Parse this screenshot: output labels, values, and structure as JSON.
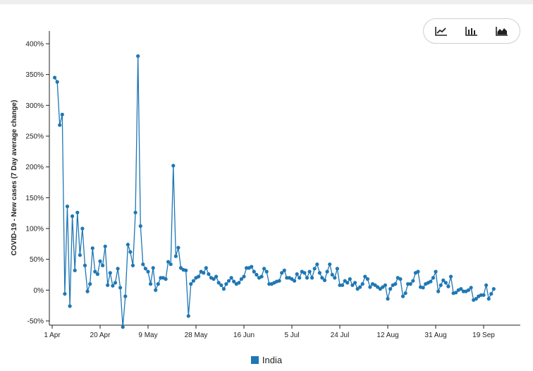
{
  "toolbar": {
    "buttons": [
      {
        "icon": "line-chart-icon"
      },
      {
        "icon": "bar-chart-icon"
      },
      {
        "icon": "area-chart-icon"
      }
    ]
  },
  "chart_data": {
    "type": "line",
    "ylabel": "COVID-19 - New cases (7 Day average change)",
    "xlabel": "",
    "ylim": [
      -50,
      400
    ],
    "yticks": [
      -50,
      0,
      50,
      100,
      150,
      200,
      250,
      300,
      350,
      400
    ],
    "ytick_labels": [
      "-50%",
      "0%",
      "50%",
      "100%",
      "150%",
      "200%",
      "250%",
      "300%",
      "350%",
      "400%"
    ],
    "xlim": [
      "2020-03-30",
      "2020-10-02"
    ],
    "xticks": [
      "2020-04-01",
      "2020-04-20",
      "2020-05-09",
      "2020-05-28",
      "2020-06-16",
      "2020-07-05",
      "2020-07-24",
      "2020-08-12",
      "2020-08-31",
      "2020-09-19"
    ],
    "xtick_labels": [
      "1 Apr",
      "20 Apr",
      "9 May",
      "28 May",
      "16 Jun",
      "5 Jul",
      "24 Jul",
      "12 Aug",
      "31 Aug",
      "19 Sep"
    ],
    "grid": false,
    "legend_position": "bottom-center",
    "color": "#1f77b4",
    "series": [
      {
        "name": "India",
        "x_start": "2020-04-02",
        "x_step_days": 1,
        "values": [
          345,
          338,
          268,
          285,
          -6,
          136,
          -26,
          120,
          32,
          126,
          57,
          100,
          40,
          -2,
          10,
          68,
          30,
          26,
          47,
          40,
          71,
          8,
          28,
          7,
          12,
          35,
          4,
          -60,
          -10,
          74,
          62,
          40,
          126,
          380,
          104,
          42,
          35,
          30,
          10,
          36,
          0,
          10,
          20,
          20,
          18,
          46,
          42,
          202,
          55,
          69,
          36,
          33,
          32,
          -42,
          10,
          15,
          20,
          22,
          30,
          28,
          36,
          26,
          20,
          18,
          22,
          12,
          8,
          2,
          10,
          15,
          20,
          14,
          10,
          12,
          18,
          22,
          36,
          36,
          38,
          30,
          25,
          20,
          22,
          35,
          30,
          10,
          10,
          12,
          14,
          15,
          28,
          32,
          20,
          20,
          18,
          15,
          26,
          20,
          30,
          28,
          20,
          30,
          20,
          35,
          42,
          28,
          20,
          16,
          30,
          42,
          25,
          20,
          35,
          8,
          8,
          15,
          12,
          18,
          8,
          12,
          2,
          5,
          10,
          22,
          18,
          5,
          10,
          8,
          5,
          2,
          5,
          8,
          -14,
          2,
          8,
          10,
          20,
          18,
          -10,
          -5,
          10,
          10,
          15,
          28,
          30,
          5,
          4,
          10,
          12,
          14,
          20,
          30,
          -2,
          8,
          16,
          12,
          6,
          22,
          -5,
          -4,
          0,
          2,
          -2,
          -2,
          0,
          4,
          -16,
          -14,
          -10,
          -8,
          -8,
          8,
          -14,
          -6,
          2
        ]
      }
    ]
  }
}
